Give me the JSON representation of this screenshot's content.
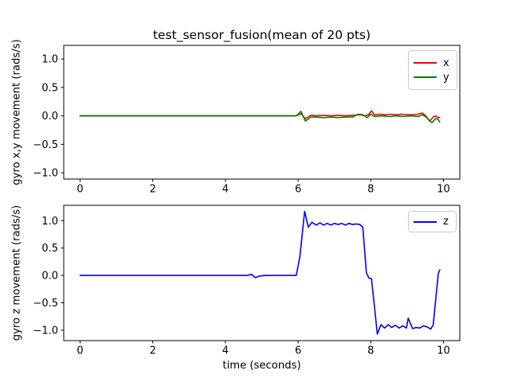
{
  "figure": {
    "background": "#ffffff",
    "frame_color": "#000000",
    "tick_color": "#000000",
    "text_color": "#000000"
  },
  "chart_data": [
    {
      "type": "line",
      "title": "test_sensor_fusion(mean of 20 pts)",
      "xlabel": "",
      "ylabel": "gyro x,y movement (rads/s)",
      "xlim": [
        -0.45,
        10.45
      ],
      "ylim": [
        -1.11,
        1.24
      ],
      "xticks": [
        0,
        2,
        4,
        6,
        8,
        10
      ],
      "yticks": [
        1.0,
        0.5,
        0.0,
        -0.5,
        -1.0
      ],
      "xtick_labels": [
        "0",
        "2",
        "4",
        "6",
        "8",
        "10"
      ],
      "ytick_labels": [
        "1.0",
        "0.5",
        "0.0",
        "−0.5",
        "−1.0"
      ],
      "grid": false,
      "legend": {
        "position": "upper right",
        "entries": [
          {
            "label": "x",
            "color": "#ff0000"
          },
          {
            "label": "y",
            "color": "#008000"
          }
        ]
      },
      "series": [
        {
          "name": "x",
          "color": "#ff0000",
          "points": [
            [
              0,
              0
            ],
            [
              1,
              0
            ],
            [
              2,
              0
            ],
            [
              3,
              0
            ],
            [
              4,
              0
            ],
            [
              5,
              0
            ],
            [
              5.95,
              0
            ],
            [
              6.08,
              0.04
            ],
            [
              6.2,
              -0.05
            ],
            [
              6.35,
              0.01
            ],
            [
              6.5,
              0
            ],
            [
              6.7,
              0.01
            ],
            [
              6.9,
              0
            ],
            [
              7.1,
              0.01
            ],
            [
              7.3,
              0
            ],
            [
              7.5,
              0.01
            ],
            [
              7.7,
              0.02
            ],
            [
              7.85,
              0
            ],
            [
              7.95,
              0.03
            ],
            [
              8.02,
              0.09
            ],
            [
              8.1,
              0.02
            ],
            [
              8.25,
              0.03
            ],
            [
              8.4,
              0.02
            ],
            [
              8.55,
              0.03
            ],
            [
              8.7,
              0.02
            ],
            [
              8.85,
              0.03
            ],
            [
              9.0,
              0.02
            ],
            [
              9.15,
              0.02
            ],
            [
              9.3,
              0.03
            ],
            [
              9.42,
              0.05
            ],
            [
              9.5,
              0.01
            ],
            [
              9.62,
              -0.09
            ],
            [
              9.72,
              -0.02
            ],
            [
              9.78,
              0.0
            ],
            [
              9.85,
              -0.03
            ],
            [
              9.9,
              -0.03
            ]
          ]
        },
        {
          "name": "y",
          "color": "#008000",
          "points": [
            [
              0,
              0
            ],
            [
              1,
              0
            ],
            [
              2,
              0
            ],
            [
              3,
              0
            ],
            [
              4,
              0
            ],
            [
              5,
              0
            ],
            [
              5.95,
              0
            ],
            [
              6.08,
              0.08
            ],
            [
              6.2,
              -0.09
            ],
            [
              6.35,
              -0.02
            ],
            [
              6.5,
              -0.02
            ],
            [
              6.7,
              -0.03
            ],
            [
              6.9,
              -0.02
            ],
            [
              7.1,
              -0.03
            ],
            [
              7.3,
              -0.02
            ],
            [
              7.5,
              -0.02
            ],
            [
              7.65,
              0.03
            ],
            [
              7.78,
              0.02
            ],
            [
              7.9,
              -0.03
            ],
            [
              8.0,
              0.03
            ],
            [
              8.1,
              -0.01
            ],
            [
              8.3,
              0
            ],
            [
              8.5,
              -0.01
            ],
            [
              8.7,
              0
            ],
            [
              8.9,
              -0.01
            ],
            [
              9.1,
              0
            ],
            [
              9.3,
              -0.01
            ],
            [
              9.42,
              0.02
            ],
            [
              9.52,
              -0.02
            ],
            [
              9.68,
              -0.12
            ],
            [
              9.78,
              -0.05
            ],
            [
              9.85,
              -0.06
            ],
            [
              9.9,
              -0.11
            ]
          ]
        }
      ]
    },
    {
      "type": "line",
      "title": "",
      "xlabel": "time (seconds)",
      "ylabel": "gyro z movement (rads/s)",
      "xlim": [
        -0.45,
        10.45
      ],
      "ylim": [
        -1.19,
        1.28
      ],
      "xticks": [
        0,
        2,
        4,
        6,
        8,
        10
      ],
      "yticks": [
        1.0,
        0.5,
        0.0,
        -0.5,
        -1.0
      ],
      "xtick_labels": [
        "0",
        "2",
        "4",
        "6",
        "8",
        "10"
      ],
      "ytick_labels": [
        "1.0",
        "0.5",
        "0.0",
        "−0.5",
        "−1.0"
      ],
      "grid": false,
      "legend": {
        "position": "upper right",
        "entries": [
          {
            "label": "z",
            "color": "#0000ff"
          }
        ]
      },
      "series": [
        {
          "name": "z",
          "color": "#0000ff",
          "points": [
            [
              0,
              0
            ],
            [
              1,
              0
            ],
            [
              2,
              0
            ],
            [
              3,
              0
            ],
            [
              4,
              0
            ],
            [
              4.6,
              0
            ],
            [
              4.72,
              0.02
            ],
            [
              4.82,
              -0.04
            ],
            [
              4.95,
              -0.01
            ],
            [
              5.1,
              0
            ],
            [
              5.95,
              0
            ],
            [
              6.05,
              0.35
            ],
            [
              6.18,
              1.17
            ],
            [
              6.28,
              0.88
            ],
            [
              6.38,
              0.97
            ],
            [
              6.5,
              0.92
            ],
            [
              6.6,
              0.96
            ],
            [
              6.7,
              0.92
            ],
            [
              6.8,
              0.95
            ],
            [
              6.9,
              0.92
            ],
            [
              7.0,
              0.95
            ],
            [
              7.1,
              0.93
            ],
            [
              7.2,
              0.95
            ],
            [
              7.3,
              0.92
            ],
            [
              7.4,
              0.95
            ],
            [
              7.5,
              0.93
            ],
            [
              7.6,
              0.94
            ],
            [
              7.7,
              0.93
            ],
            [
              7.78,
              0.88
            ],
            [
              7.88,
              0.05
            ],
            [
              7.95,
              -0.05
            ],
            [
              8.02,
              -0.06
            ],
            [
              8.1,
              -0.55
            ],
            [
              8.18,
              -1.07
            ],
            [
              8.28,
              -0.9
            ],
            [
              8.38,
              -0.96
            ],
            [
              8.48,
              -0.9
            ],
            [
              8.58,
              -0.95
            ],
            [
              8.68,
              -0.91
            ],
            [
              8.78,
              -0.96
            ],
            [
              8.88,
              -0.92
            ],
            [
              8.98,
              -0.96
            ],
            [
              9.03,
              -0.78
            ],
            [
              9.15,
              -0.97
            ],
            [
              9.25,
              -0.95
            ],
            [
              9.35,
              -0.96
            ],
            [
              9.45,
              -0.92
            ],
            [
              9.55,
              -0.94
            ],
            [
              9.65,
              -0.98
            ],
            [
              9.72,
              -0.9
            ],
            [
              9.8,
              -0.35
            ],
            [
              9.86,
              0.04
            ],
            [
              9.9,
              0.1
            ]
          ]
        }
      ]
    }
  ]
}
